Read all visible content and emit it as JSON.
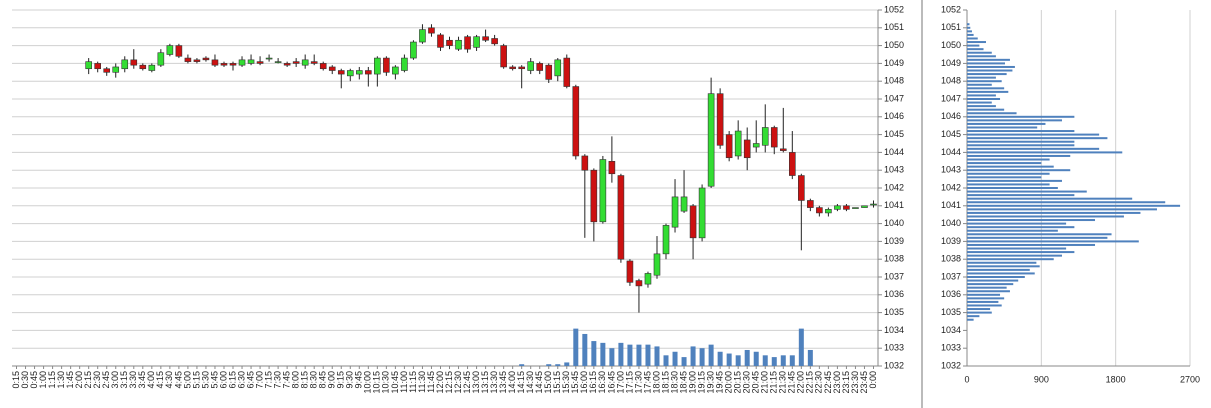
{
  "chart_data": [
    {
      "type": "candlestick",
      "categories": [
        "0:15",
        "0:30",
        "0:45",
        "1:00",
        "1:15",
        "1:30",
        "1:45",
        "2:00",
        "2:15",
        "2:30",
        "2:45",
        "3:00",
        "3:15",
        "3:30",
        "3:45",
        "4:00",
        "4:15",
        "4:30",
        "4:45",
        "5:00",
        "5:15",
        "5:30",
        "5:45",
        "6:00",
        "6:15",
        "6:30",
        "6:45",
        "7:00",
        "7:15",
        "7:30",
        "7:45",
        "8:00",
        "8:15",
        "8:30",
        "8:45",
        "9:00",
        "9:15",
        "9:30",
        "9:45",
        "10:00",
        "10:15",
        "10:30",
        "10:45",
        "11:00",
        "11:15",
        "11:30",
        "11:45",
        "12:00",
        "12:15",
        "12:30",
        "12:45",
        "13:00",
        "13:15",
        "13:30",
        "13:45",
        "14:00",
        "14:15",
        "14:30",
        "14:45",
        "15:00",
        "15:15",
        "15:30",
        "15:45",
        "16:00",
        "16:15",
        "16:30",
        "16:45",
        "17:00",
        "17:15",
        "17:30",
        "17:45",
        "18:00",
        "18:15",
        "18:30",
        "18:45",
        "19:00",
        "19:15",
        "19:30",
        "19:45",
        "20:00",
        "20:15",
        "20:30",
        "20:45",
        "21:00",
        "21:15",
        "21:30",
        "21:45",
        "22:00",
        "22:15",
        "22:30",
        "22:45",
        "23:00",
        "23:15",
        "23:30",
        "23:45",
        "0:00"
      ],
      "open": [
        null,
        null,
        null,
        null,
        null,
        null,
        null,
        null,
        1048.7,
        1049.0,
        1048.7,
        1048.5,
        1048.7,
        1049.2,
        1048.9,
        1048.6,
        1048.9,
        1049.5,
        1050.0,
        1049.3,
        1049.2,
        1049.3,
        1049.2,
        1049.0,
        1049.0,
        1048.9,
        1049.0,
        1049.1,
        1049.3,
        1049.1,
        1049.0,
        1049.1,
        1048.9,
        1049.1,
        1049.0,
        1048.8,
        1048.6,
        1048.3,
        1048.4,
        1048.6,
        1048.4,
        1049.3,
        1048.4,
        1048.6,
        1049.3,
        1050.2,
        1051.0,
        1050.6,
        1050.3,
        1049.8,
        1050.5,
        1049.9,
        1050.5,
        1050.4,
        1050.0,
        1048.8,
        1048.8,
        1048.6,
        1049.0,
        1048.9,
        1048.3,
        1049.3,
        1047.7,
        1043.8,
        1043.0,
        1040.1,
        1043.5,
        1042.7,
        1037.9,
        1036.8,
        1036.6,
        1037.1,
        1038.3,
        1039.8,
        1040.7,
        1041.0,
        1039.2,
        1042.1,
        1047.3,
        1045.0,
        1043.8,
        1044.7,
        1044.3,
        1044.4,
        1045.4,
        1044.2,
        1044.0,
        1042.7,
        1041.3,
        1040.9,
        1040.6,
        1040.8,
        1041.0,
        1040.9,
        1040.9,
        1041.1
      ],
      "close": [
        null,
        null,
        null,
        null,
        null,
        null,
        null,
        null,
        1049.1,
        1048.7,
        1048.5,
        1048.8,
        1049.2,
        1048.9,
        1048.7,
        1048.9,
        1049.6,
        1050.0,
        1049.4,
        1049.1,
        1049.1,
        1049.2,
        1048.9,
        1048.9,
        1048.9,
        1049.2,
        1049.2,
        1049.0,
        1049.3,
        1049.1,
        1048.9,
        1049.0,
        1049.2,
        1049.0,
        1048.7,
        1048.6,
        1048.4,
        1048.6,
        1048.6,
        1048.4,
        1049.3,
        1048.5,
        1048.8,
        1049.3,
        1050.2,
        1050.9,
        1050.7,
        1049.9,
        1050.0,
        1050.3,
        1049.8,
        1050.5,
        1050.3,
        1050.1,
        1048.8,
        1048.7,
        1048.7,
        1049.1,
        1048.6,
        1048.1,
        1049.2,
        1047.7,
        1043.8,
        1043.0,
        1040.1,
        1043.6,
        1042.8,
        1038.0,
        1036.7,
        1036.5,
        1037.2,
        1038.3,
        1039.9,
        1041.5,
        1041.5,
        1039.2,
        1042.0,
        1047.3,
        1044.4,
        1043.7,
        1045.2,
        1043.7,
        1044.5,
        1045.4,
        1044.3,
        1044.1,
        1042.7,
        1041.3,
        1040.9,
        1040.6,
        1040.8,
        1041.0,
        1040.8,
        1040.9,
        1041.0,
        1041.1
      ],
      "high": [
        null,
        null,
        null,
        null,
        null,
        null,
        null,
        null,
        1049.3,
        1049.1,
        1048.8,
        1049.0,
        1049.4,
        1049.8,
        1049.0,
        1049.0,
        1049.8,
        1050.1,
        1050.1,
        1049.5,
        1049.3,
        1049.4,
        1049.5,
        1049.1,
        1049.1,
        1049.4,
        1049.5,
        1049.4,
        1049.5,
        1049.3,
        1049.1,
        1049.3,
        1049.5,
        1049.5,
        1049.1,
        1048.9,
        1048.7,
        1048.7,
        1048.8,
        1048.8,
        1049.4,
        1049.4,
        1048.9,
        1049.5,
        1050.3,
        1051.2,
        1051.2,
        1050.7,
        1050.5,
        1050.5,
        1050.6,
        1050.6,
        1050.9,
        1050.6,
        1050.1,
        1048.9,
        1048.9,
        1049.3,
        1049.1,
        1049.0,
        1049.3,
        1049.5,
        1047.8,
        1043.9,
        1043.1,
        1043.8,
        1044.9,
        1042.8,
        1038.0,
        1036.9,
        1037.3,
        1039.3,
        1040.0,
        1042.5,
        1043.0,
        1041.1,
        1042.2,
        1048.2,
        1047.6,
        1045.2,
        1045.8,
        1045.4,
        1045.8,
        1046.7,
        1045.5,
        1046.5,
        1045.2,
        1042.8,
        1041.4,
        1041.0,
        1040.9,
        1041.1,
        1041.1,
        1040.9,
        1041.0,
        1041.3
      ],
      "low": [
        null,
        null,
        null,
        null,
        null,
        null,
        null,
        null,
        1048.4,
        1048.5,
        1048.3,
        1048.2,
        1048.5,
        1048.7,
        1048.6,
        1048.5,
        1048.8,
        1049.4,
        1049.3,
        1049.0,
        1049.0,
        1049.1,
        1048.8,
        1048.8,
        1048.6,
        1048.8,
        1048.9,
        1048.9,
        1049.1,
        1049.0,
        1048.8,
        1048.8,
        1048.7,
        1048.9,
        1048.6,
        1048.4,
        1047.6,
        1048.0,
        1048.1,
        1047.7,
        1047.7,
        1048.3,
        1048.1,
        1048.5,
        1049.2,
        1050.1,
        1050.5,
        1049.7,
        1049.8,
        1049.7,
        1049.6,
        1049.7,
        1050.2,
        1050.0,
        1048.7,
        1048.6,
        1047.6,
        1048.4,
        1048.4,
        1047.9,
        1048.0,
        1047.6,
        1043.6,
        1039.2,
        1039.0,
        1040.0,
        1042.3,
        1037.8,
        1036.5,
        1035.0,
        1036.4,
        1036.9,
        1038.0,
        1039.5,
        1040.6,
        1038.0,
        1039.0,
        1042.0,
        1044.2,
        1043.5,
        1043.6,
        1043.0,
        1044.0,
        1044.0,
        1043.9,
        1044.0,
        1042.5,
        1038.5,
        1040.7,
        1040.4,
        1040.4,
        1040.7,
        1040.7,
        1040.9,
        1040.9,
        1040.9
      ],
      "up_color": "#33dd33",
      "down_color": "#cc1111",
      "volume": {
        "color": "#4f81bd",
        "values": [
          null,
          null,
          null,
          null,
          null,
          null,
          null,
          null,
          null,
          null,
          null,
          null,
          null,
          null,
          null,
          null,
          null,
          null,
          null,
          null,
          null,
          null,
          null,
          null,
          null,
          null,
          null,
          null,
          null,
          null,
          null,
          null,
          null,
          null,
          null,
          null,
          null,
          null,
          null,
          null,
          null,
          null,
          null,
          null,
          null,
          null,
          null,
          null,
          null,
          null,
          null,
          null,
          null,
          null,
          null,
          null,
          1032.1,
          null,
          null,
          1032.1,
          1032.1,
          1032.2,
          1034.1,
          1033.8,
          1033.4,
          1033.3,
          1033.0,
          1033.3,
          1033.2,
          1033.2,
          1033.2,
          1033.1,
          1032.6,
          1032.8,
          1032.5,
          1033.1,
          1033.0,
          1033.2,
          1032.8,
          1032.7,
          1032.6,
          1032.9,
          1032.8,
          1032.6,
          1032.5,
          1032.6,
          1032.6,
          1034.1,
          1032.9,
          null,
          null,
          null,
          null,
          null,
          null,
          null
        ]
      },
      "ylim": [
        1032,
        1052
      ],
      "yticks": [
        1032,
        1033,
        1034,
        1035,
        1036,
        1037,
        1038,
        1039,
        1040,
        1041,
        1042,
        1043,
        1044,
        1045,
        1046,
        1047,
        1048,
        1049,
        1050,
        1051,
        1052
      ],
      "grid": true
    },
    {
      "type": "barh",
      "levels": [
        1034.6,
        1034.8,
        1035.0,
        1035.2,
        1035.4,
        1035.6,
        1035.8,
        1036.0,
        1036.2,
        1036.4,
        1036.6,
        1036.8,
        1037.0,
        1037.2,
        1037.4,
        1037.6,
        1037.8,
        1038.0,
        1038.2,
        1038.4,
        1038.6,
        1038.8,
        1039.0,
        1039.2,
        1039.4,
        1039.6,
        1039.8,
        1040.0,
        1040.2,
        1040.4,
        1040.6,
        1040.8,
        1041.0,
        1041.2,
        1041.4,
        1041.6,
        1041.8,
        1042.0,
        1042.2,
        1042.4,
        1042.6,
        1042.8,
        1043.0,
        1043.2,
        1043.4,
        1043.6,
        1043.8,
        1044.0,
        1044.2,
        1044.4,
        1044.6,
        1044.8,
        1045.0,
        1045.2,
        1045.4,
        1045.6,
        1045.8,
        1046.0,
        1046.2,
        1046.4,
        1046.6,
        1046.8,
        1047.0,
        1047.2,
        1047.4,
        1047.6,
        1047.8,
        1048.0,
        1048.2,
        1048.4,
        1048.6,
        1048.8,
        1049.0,
        1049.2,
        1049.4,
        1049.6,
        1049.8,
        1050.0,
        1050.2,
        1050.4,
        1050.6,
        1050.8,
        1051.0,
        1051.2
      ],
      "values": [
        80,
        150,
        300,
        280,
        420,
        380,
        450,
        400,
        520,
        480,
        560,
        620,
        700,
        820,
        760,
        880,
        840,
        1050,
        1150,
        1300,
        1200,
        1550,
        2080,
        1700,
        1750,
        1100,
        1300,
        1200,
        1550,
        1900,
        2100,
        2300,
        2580,
        2400,
        2000,
        1300,
        1450,
        1100,
        1000,
        1150,
        900,
        1000,
        1250,
        1050,
        900,
        1000,
        1250,
        1880,
        1600,
        1300,
        1300,
        1700,
        1600,
        1300,
        850,
        950,
        1150,
        1300,
        600,
        450,
        350,
        300,
        400,
        350,
        500,
        450,
        300,
        420,
        350,
        480,
        550,
        580,
        460,
        520,
        350,
        300,
        200,
        150,
        230,
        130,
        80,
        60,
        40,
        30
      ],
      "color": "#4f81bd",
      "xlim": [
        0,
        2700
      ],
      "xticks": [
        0,
        900,
        1800,
        2700
      ],
      "ylim": [
        1032,
        1052
      ],
      "yticks": [
        1032,
        1033,
        1034,
        1035,
        1036,
        1037,
        1038,
        1039,
        1040,
        1041,
        1042,
        1043,
        1044,
        1045,
        1046,
        1047,
        1048,
        1049,
        1050,
        1051,
        1052
      ],
      "grid": true
    }
  ]
}
